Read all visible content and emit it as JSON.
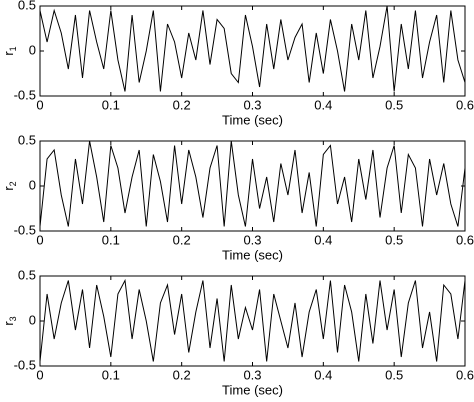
{
  "chart_data": [
    {
      "type": "line",
      "ylabel": "r",
      "ylabel_sub": "1",
      "xlabel": "Time (sec)",
      "xlim": [
        0,
        0.6
      ],
      "ylim": [
        -0.5,
        0.5
      ],
      "xticks": [
        0,
        0.1,
        0.2,
        0.3,
        0.4,
        0.5,
        0.6
      ],
      "yticks": [
        -0.5,
        0,
        0.5
      ],
      "color": "#000000",
      "x": [
        0,
        0.01,
        0.02,
        0.03,
        0.04,
        0.05,
        0.06,
        0.07,
        0.08,
        0.09,
        0.1,
        0.11,
        0.12,
        0.13,
        0.14,
        0.15,
        0.16,
        0.17,
        0.18,
        0.19,
        0.2,
        0.21,
        0.22,
        0.23,
        0.24,
        0.25,
        0.26,
        0.27,
        0.28,
        0.29,
        0.3,
        0.31,
        0.32,
        0.33,
        0.34,
        0.35,
        0.36,
        0.37,
        0.38,
        0.39,
        0.4,
        0.41,
        0.42,
        0.43,
        0.44,
        0.45,
        0.46,
        0.47,
        0.48,
        0.49,
        0.5,
        0.51,
        0.52,
        0.53,
        0.54,
        0.55,
        0.56,
        0.57,
        0.58,
        0.59,
        0.6
      ],
      "values": [
        0.45,
        0.1,
        0.45,
        0.2,
        -0.2,
        0.4,
        -0.3,
        0.45,
        0.1,
        -0.2,
        0.45,
        -0.1,
        -0.45,
        0.4,
        -0.35,
        0,
        0.45,
        -0.45,
        0.3,
        0.1,
        -0.3,
        0.2,
        -0.1,
        0.45,
        -0.15,
        0.35,
        0.25,
        -0.25,
        -0.35,
        0.4,
        0.05,
        -0.4,
        0.3,
        -0.2,
        0.35,
        -0.1,
        0.15,
        0.3,
        -0.35,
        0.2,
        -0.25,
        0.35,
        0,
        -0.45,
        0.3,
        -0.1,
        0.45,
        -0.3,
        0.05,
        0.5,
        -0.45,
        0.3,
        -0.2,
        0.45,
        -0.3,
        0.1,
        0.4,
        -0.35,
        0.45,
        -0.1,
        -0.35
      ]
    },
    {
      "type": "line",
      "ylabel": "r",
      "ylabel_sub": "2",
      "xlabel": "Time (sec)",
      "xlim": [
        0,
        0.6
      ],
      "ylim": [
        -0.5,
        0.5
      ],
      "xticks": [
        0,
        0.1,
        0.2,
        0.3,
        0.4,
        0.5,
        0.6
      ],
      "yticks": [
        -0.5,
        0,
        0.5
      ],
      "color": "#000000",
      "x": [
        0,
        0.01,
        0.02,
        0.03,
        0.04,
        0.05,
        0.06,
        0.07,
        0.08,
        0.09,
        0.1,
        0.11,
        0.12,
        0.13,
        0.14,
        0.15,
        0.16,
        0.17,
        0.18,
        0.19,
        0.2,
        0.21,
        0.22,
        0.23,
        0.24,
        0.25,
        0.26,
        0.27,
        0.28,
        0.29,
        0.3,
        0.31,
        0.32,
        0.33,
        0.34,
        0.35,
        0.36,
        0.37,
        0.38,
        0.39,
        0.4,
        0.41,
        0.42,
        0.43,
        0.44,
        0.45,
        0.46,
        0.47,
        0.48,
        0.49,
        0.5,
        0.51,
        0.52,
        0.53,
        0.54,
        0.55,
        0.56,
        0.57,
        0.58,
        0.59,
        0.6
      ],
      "values": [
        -0.45,
        0.3,
        0.4,
        -0.1,
        -0.45,
        0.3,
        -0.2,
        0.5,
        0.1,
        -0.4,
        0.45,
        0.2,
        -0.3,
        0.1,
        0.4,
        -0.45,
        0.35,
        0.05,
        -0.4,
        0.45,
        -0.2,
        0.4,
        0.1,
        -0.35,
        0.2,
        0.45,
        -0.45,
        0.5,
        -0.1,
        -0.45,
        0.3,
        -0.25,
        0.1,
        -0.4,
        0.25,
        -0.1,
        0.4,
        -0.3,
        0.15,
        -0.45,
        0.35,
        0.45,
        -0.2,
        0.1,
        -0.4,
        0.3,
        -0.15,
        0.4,
        -0.35,
        0.2,
        0.45,
        -0.3,
        0.35,
        0.2,
        -0.45,
        0.3,
        -0.1,
        0.25,
        -0.2,
        -0.45,
        0.2
      ]
    },
    {
      "type": "line",
      "ylabel": "r",
      "ylabel_sub": "3",
      "xlabel": "Time (sec)",
      "xlim": [
        0,
        0.6
      ],
      "ylim": [
        -0.5,
        0.5
      ],
      "xticks": [
        0,
        0.1,
        0.2,
        0.3,
        0.4,
        0.5,
        0.6
      ],
      "yticks": [
        -0.5,
        0,
        0.5
      ],
      "color": "#000000",
      "x": [
        0,
        0.01,
        0.02,
        0.03,
        0.04,
        0.05,
        0.06,
        0.07,
        0.08,
        0.09,
        0.1,
        0.11,
        0.12,
        0.13,
        0.14,
        0.15,
        0.16,
        0.17,
        0.18,
        0.19,
        0.2,
        0.21,
        0.22,
        0.23,
        0.24,
        0.25,
        0.26,
        0.27,
        0.28,
        0.29,
        0.3,
        0.31,
        0.32,
        0.33,
        0.34,
        0.35,
        0.36,
        0.37,
        0.38,
        0.39,
        0.4,
        0.41,
        0.42,
        0.43,
        0.44,
        0.45,
        0.46,
        0.47,
        0.48,
        0.49,
        0.5,
        0.51,
        0.52,
        0.53,
        0.54,
        0.55,
        0.56,
        0.57,
        0.58,
        0.59,
        0.6
      ],
      "values": [
        -0.45,
        0.3,
        -0.2,
        0.2,
        0.45,
        -0.1,
        0.35,
        -0.3,
        0.4,
        0.05,
        -0.4,
        0.3,
        0.45,
        -0.2,
        0.35,
        0,
        -0.45,
        0.2,
        0.4,
        -0.15,
        0.3,
        -0.35,
        0.1,
        0.45,
        -0.3,
        0.25,
        -0.45,
        0.4,
        -0.2,
        0.15,
        -0.1,
        0.35,
        -0.45,
        0.3,
        0,
        -0.3,
        0.2,
        -0.4,
        0.1,
        0.35,
        -0.2,
        0.45,
        -0.35,
        0.4,
        0.1,
        -0.45,
        0.3,
        -0.25,
        0.45,
        -0.1,
        0.35,
        -0.4,
        0.2,
        0.45,
        -0.3,
        0.1,
        -0.45,
        0.4,
        0.3,
        -0.2,
        0.45
      ]
    }
  ]
}
